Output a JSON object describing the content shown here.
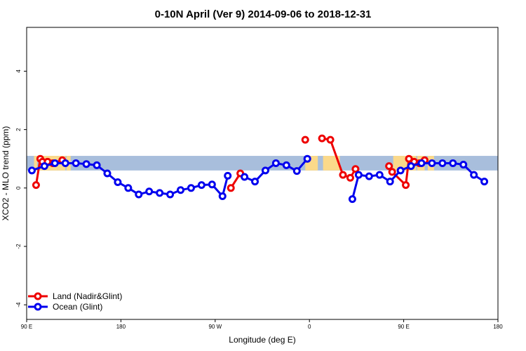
{
  "chart_data": {
    "type": "line",
    "title": "0-10N April (Ver 9)   2014-09-06 to 2018-12-31",
    "xlabel": "Longitude (deg E)",
    "ylabel": "XCO2 - MLO trend (ppm)",
    "xlim": [
      90,
      540
    ],
    "ylim": [
      -4.5,
      5.5
    ],
    "x_ticks": [
      {
        "value": 90,
        "label": "90 E"
      },
      {
        "value": 180,
        "label": "180"
      },
      {
        "value": 270,
        "label": "90 W"
      },
      {
        "value": 360,
        "label": "0"
      },
      {
        "value": 450,
        "label": "90 E"
      },
      {
        "value": 540,
        "label": "180"
      }
    ],
    "y_ticks": [
      {
        "value": -4,
        "label": "-4"
      },
      {
        "value": -2,
        "label": "-2"
      },
      {
        "value": 0,
        "label": "0"
      },
      {
        "value": 2,
        "label": "2"
      },
      {
        "value": 4,
        "label": "4"
      }
    ],
    "grid": false,
    "legend_position": "bottom-left",
    "background_band": {
      "y_range": [
        0.6,
        1.1
      ],
      "ocean_color": "#a8bedc",
      "land_color": "#fbd98a"
    },
    "land_ranges": [
      [
        97,
        100
      ],
      [
        102,
        104
      ],
      [
        104,
        120
      ],
      [
        120,
        127
      ],
      [
        128,
        132
      ],
      [
        356,
        368
      ],
      [
        373,
        389
      ],
      [
        440,
        462
      ],
      [
        463,
        470
      ],
      [
        473,
        479
      ]
    ],
    "series": [
      {
        "name": "Land (Nadir&Glint)",
        "color": "#ee0000",
        "segments": [
          [
            [
              99,
              0.1
            ],
            [
              103,
              1.0
            ],
            [
              105,
              0.9
            ],
            [
              110,
              0.9
            ],
            [
              115,
              0.85
            ],
            [
              124,
              0.95
            ]
          ],
          [
            [
              285,
              0.0
            ],
            [
              294,
              0.5
            ]
          ],
          [
            [
              356,
              1.65
            ]
          ],
          [
            [
              372,
              1.7
            ],
            [
              380,
              1.65
            ],
            [
              392,
              0.45
            ],
            [
              399,
              0.35
            ],
            [
              404,
              0.65
            ]
          ],
          [
            [
              436,
              0.75
            ],
            [
              439,
              0.55
            ],
            [
              452,
              0.1
            ],
            [
              455,
              1.0
            ],
            [
              460,
              0.9
            ],
            [
              465,
              0.85
            ],
            [
              470,
              0.95
            ]
          ]
        ]
      },
      {
        "name": "Ocean (Glint)",
        "color": "#0000ee",
        "segments": [
          [
            [
              95,
              0.6
            ],
            [
              107,
              0.75
            ],
            [
              117,
              0.85
            ],
            [
              127,
              0.85
            ],
            [
              137,
              0.85
            ],
            [
              147,
              0.82
            ],
            [
              157,
              0.78
            ],
            [
              167,
              0.5
            ],
            [
              177,
              0.2
            ],
            [
              187,
              0.0
            ],
            [
              197,
              -0.22
            ],
            [
              207,
              -0.12
            ],
            [
              217,
              -0.17
            ],
            [
              227,
              -0.22
            ],
            [
              237,
              -0.07
            ],
            [
              247,
              0.0
            ],
            [
              257,
              0.1
            ],
            [
              267,
              0.12
            ],
            [
              277,
              -0.28
            ],
            [
              282,
              0.42
            ]
          ],
          [
            [
              298,
              0.38
            ],
            [
              308,
              0.22
            ],
            [
              318,
              0.6
            ],
            [
              328,
              0.85
            ],
            [
              338,
              0.78
            ],
            [
              348,
              0.58
            ],
            [
              358,
              1.0
            ]
          ],
          [
            [
              401,
              -0.38
            ],
            [
              407,
              0.45
            ],
            [
              417,
              0.4
            ],
            [
              427,
              0.45
            ],
            [
              437,
              0.22
            ],
            [
              447,
              0.6
            ],
            [
              457,
              0.75
            ],
            [
              467,
              0.85
            ],
            [
              477,
              0.85
            ],
            [
              487,
              0.85
            ],
            [
              497,
              0.85
            ],
            [
              507,
              0.8
            ],
            [
              517,
              0.45
            ],
            [
              527,
              0.22
            ]
          ]
        ]
      }
    ]
  }
}
